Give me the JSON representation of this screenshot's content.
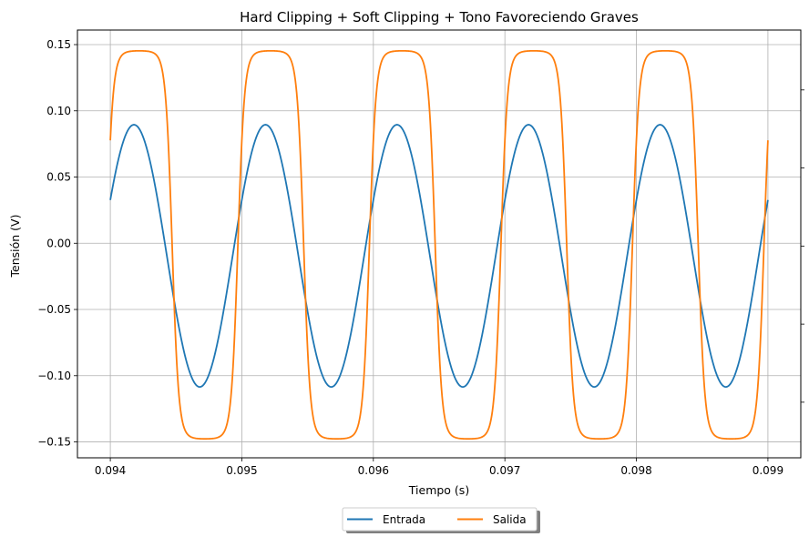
{
  "chart_data": {
    "type": "line",
    "title": "Hard Clipping + Soft Clipping + Tono Favoreciendo Graves",
    "xlabel": "Tiempo (s)",
    "ylabel": "Tensión (V)",
    "xlim": [
      0.09375,
      0.09925
    ],
    "ylim": [
      -0.162,
      0.161
    ],
    "xticks": [
      0.094,
      0.095,
      0.096,
      0.097,
      0.098,
      0.099
    ],
    "xtick_labels": [
      "0.094",
      "0.095",
      "0.096",
      "0.097",
      "0.098",
      "0.099"
    ],
    "yticks": [
      0.15,
      0.1,
      0.05,
      0.0,
      -0.05,
      -0.1,
      -0.15
    ],
    "ytick_labels": [
      "0.15",
      "0.10",
      "0.05",
      "0.00",
      "−0.05",
      "−0.10",
      "−0.15"
    ],
    "grid": true,
    "legend_position": "bottom-center",
    "frequency_hz": 1000,
    "series": [
      {
        "name": "Entrada",
        "color": "#1f77b4",
        "waveform": "sine",
        "offset": -0.0095,
        "amplitude": 0.099,
        "peak_time": 0.09418,
        "x_start": 0.094,
        "x_end": 0.099,
        "max": 0.0895,
        "min": -0.1085,
        "start_value": 0.039,
        "end_value": 0.034
      },
      {
        "name": "Salida",
        "color": "#ff7f0e",
        "waveform": "soft-clipped sine",
        "offset": -0.0012,
        "amplitude": 0.1465,
        "peak_time": 0.09422,
        "x_start": 0.094,
        "x_end": 0.099,
        "max": 0.1453,
        "min": -0.1477,
        "start_value": 0.089,
        "end_value": 0.078
      }
    ],
    "right_axis_ticks": 5
  }
}
